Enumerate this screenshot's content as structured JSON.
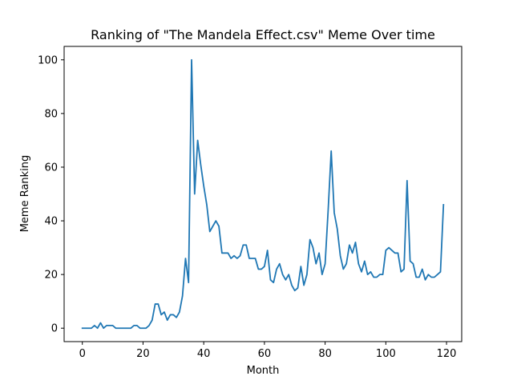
{
  "chart_data": {
    "type": "line",
    "title": "Ranking of \"The Mandela Effect.csv\" Meme Over time",
    "xlabel": "Month",
    "ylabel": "Meme Ranking",
    "xlim": [
      -6,
      125
    ],
    "ylim": [
      -5,
      105
    ],
    "xticks": [
      0,
      20,
      40,
      60,
      80,
      100,
      120
    ],
    "yticks": [
      0,
      20,
      40,
      60,
      80,
      100
    ],
    "grid": false,
    "color": "#1f77b4",
    "series": [
      {
        "x": [
          0,
          1,
          2,
          3,
          4,
          5,
          6,
          7,
          8,
          9,
          10,
          11,
          12,
          13,
          14,
          15,
          16,
          17,
          18,
          19,
          20,
          21,
          22,
          23,
          24,
          25,
          26,
          27,
          28,
          29,
          30,
          31,
          32,
          33,
          34,
          35,
          36,
          37,
          38,
          39,
          40,
          41,
          42,
          43,
          44,
          45,
          46,
          47,
          48,
          49,
          50,
          51,
          52,
          53,
          54,
          55,
          56,
          57,
          58,
          59,
          60,
          61,
          62,
          63,
          64,
          65,
          66,
          67,
          68,
          69,
          70,
          71,
          72,
          73,
          74,
          75,
          76,
          77,
          78,
          79,
          80,
          81,
          82,
          83,
          84,
          85,
          86,
          87,
          88,
          89,
          90,
          91,
          92,
          93,
          94,
          95,
          96,
          97,
          98,
          99,
          100,
          101,
          102,
          103,
          104,
          105,
          106,
          107,
          108,
          109,
          110,
          111,
          112,
          113,
          114,
          115,
          116,
          117,
          118,
          119
        ],
        "y": [
          0,
          0,
          0,
          0,
          1,
          0,
          2,
          0,
          1,
          1,
          1,
          0,
          0,
          0,
          0,
          0,
          0,
          1,
          1,
          0,
          0,
          0,
          1,
          3,
          9,
          9,
          5,
          6,
          3,
          5,
          5,
          4,
          6,
          12,
          26,
          17,
          100,
          50,
          70,
          61,
          53,
          46,
          36,
          38,
          40,
          38,
          28,
          28,
          28,
          26,
          27,
          26,
          27,
          31,
          31,
          26,
          26,
          26,
          22,
          22,
          23,
          29,
          18,
          17,
          22,
          24,
          20,
          18,
          20,
          16,
          14,
          15,
          23,
          16,
          20,
          33,
          30,
          24,
          28,
          20,
          24,
          44,
          66,
          43,
          37,
          27,
          22,
          24,
          31,
          28,
          32,
          24,
          21,
          25,
          20,
          21,
          19,
          19,
          20,
          20,
          29,
          30,
          29,
          28,
          28,
          21,
          22,
          55,
          25,
          24,
          19,
          19,
          22,
          18,
          20,
          19,
          19,
          20,
          21,
          46
        ]
      }
    ]
  }
}
